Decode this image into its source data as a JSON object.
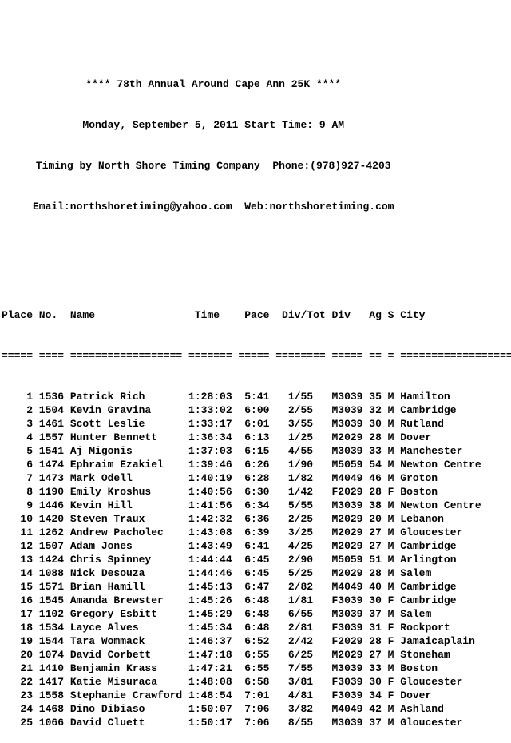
{
  "page": {
    "background_color": "#ffffff",
    "text_color": "#000000"
  },
  "header": {
    "title": "**** 78th Annual Around Cape Ann 25K ****",
    "date_line": "Monday, September 5, 2011 Start Time: 9 AM",
    "timing_line": "Timing by North Shore Timing Company  Phone:(978)927-4203",
    "contact_line": "Email:northshoretiming@yahoo.com  Web:northshoretiming.com"
  },
  "table": {
    "columns": [
      "Place",
      "No.",
      "Name",
      "Time",
      "Pace",
      "Div/Tot",
      "Div",
      "Ag",
      "S",
      "City"
    ],
    "rows": [
      {
        "place": "1",
        "no": "1536",
        "name": "Patrick Rich",
        "time": "1:28:03",
        "pace": "5:41",
        "div_tot": "1/55",
        "div": "M3039",
        "ag": "35",
        "s": "M",
        "city": "Hamilton"
      },
      {
        "place": "2",
        "no": "1504",
        "name": "Kevin Gravina",
        "time": "1:33:02",
        "pace": "6:00",
        "div_tot": "2/55",
        "div": "M3039",
        "ag": "32",
        "s": "M",
        "city": "Cambridge"
      },
      {
        "place": "3",
        "no": "1461",
        "name": "Scott Leslie",
        "time": "1:33:17",
        "pace": "6:01",
        "div_tot": "3/55",
        "div": "M3039",
        "ag": "30",
        "s": "M",
        "city": "Rutland"
      },
      {
        "place": "4",
        "no": "1557",
        "name": "Hunter Bennett",
        "time": "1:36:34",
        "pace": "6:13",
        "div_tot": "1/25",
        "div": "M2029",
        "ag": "28",
        "s": "M",
        "city": "Dover"
      },
      {
        "place": "5",
        "no": "1541",
        "name": "Aj Migonis",
        "time": "1:37:03",
        "pace": "6:15",
        "div_tot": "4/55",
        "div": "M3039",
        "ag": "33",
        "s": "M",
        "city": "Manchester"
      },
      {
        "place": "6",
        "no": "1474",
        "name": "Ephraim Ezakiel",
        "time": "1:39:46",
        "pace": "6:26",
        "div_tot": "1/90",
        "div": "M5059",
        "ag": "54",
        "s": "M",
        "city": "Newton Centre"
      },
      {
        "place": "7",
        "no": "1473",
        "name": "Mark Odell",
        "time": "1:40:19",
        "pace": "6:28",
        "div_tot": "1/82",
        "div": "M4049",
        "ag": "46",
        "s": "M",
        "city": "Groton"
      },
      {
        "place": "8",
        "no": "1190",
        "name": "Emily Kroshus",
        "time": "1:40:56",
        "pace": "6:30",
        "div_tot": "1/42",
        "div": "F2029",
        "ag": "28",
        "s": "F",
        "city": "Boston"
      },
      {
        "place": "9",
        "no": "1446",
        "name": "Kevin Hill",
        "time": "1:41:56",
        "pace": "6:34",
        "div_tot": "5/55",
        "div": "M3039",
        "ag": "38",
        "s": "M",
        "city": "Newton Centre"
      },
      {
        "place": "10",
        "no": "1420",
        "name": "Steven Traux",
        "time": "1:42:32",
        "pace": "6:36",
        "div_tot": "2/25",
        "div": "M2029",
        "ag": "20",
        "s": "M",
        "city": "Lebanon"
      },
      {
        "place": "11",
        "no": "1262",
        "name": "Andrew Pacholec",
        "time": "1:43:08",
        "pace": "6:39",
        "div_tot": "3/25",
        "div": "M2029",
        "ag": "27",
        "s": "M",
        "city": "Gloucester"
      },
      {
        "place": "12",
        "no": "1507",
        "name": "Adam Jones",
        "time": "1:43:49",
        "pace": "6:41",
        "div_tot": "4/25",
        "div": "M2029",
        "ag": "27",
        "s": "M",
        "city": "Cambridge"
      },
      {
        "place": "13",
        "no": "1424",
        "name": "Chris Spinney",
        "time": "1:44:44",
        "pace": "6:45",
        "div_tot": "2/90",
        "div": "M5059",
        "ag": "51",
        "s": "M",
        "city": "Arlington"
      },
      {
        "place": "14",
        "no": "1088",
        "name": "Nick Desouza",
        "time": "1:44:46",
        "pace": "6:45",
        "div_tot": "5/25",
        "div": "M2029",
        "ag": "28",
        "s": "M",
        "city": "Salem"
      },
      {
        "place": "15",
        "no": "1571",
        "name": "Brian Hamill",
        "time": "1:45:13",
        "pace": "6:47",
        "div_tot": "2/82",
        "div": "M4049",
        "ag": "40",
        "s": "M",
        "city": "Cambridge"
      },
      {
        "place": "16",
        "no": "1545",
        "name": "Amanda Brewster",
        "time": "1:45:26",
        "pace": "6:48",
        "div_tot": "1/81",
        "div": "F3039",
        "ag": "30",
        "s": "F",
        "city": "Cambridge"
      },
      {
        "place": "17",
        "no": "1102",
        "name": "Gregory Esbitt",
        "time": "1:45:29",
        "pace": "6:48",
        "div_tot": "6/55",
        "div": "M3039",
        "ag": "37",
        "s": "M",
        "city": "Salem"
      },
      {
        "place": "18",
        "no": "1534",
        "name": "Layce Alves",
        "time": "1:45:34",
        "pace": "6:48",
        "div_tot": "2/81",
        "div": "F3039",
        "ag": "31",
        "s": "F",
        "city": "Rockport"
      },
      {
        "place": "19",
        "no": "1544",
        "name": "Tara Wommack",
        "time": "1:46:37",
        "pace": "6:52",
        "div_tot": "2/42",
        "div": "F2029",
        "ag": "28",
        "s": "F",
        "city": "Jamaicaplain"
      },
      {
        "place": "20",
        "no": "1074",
        "name": "David Corbett",
        "time": "1:47:18",
        "pace": "6:55",
        "div_tot": "6/25",
        "div": "M2029",
        "ag": "27",
        "s": "M",
        "city": "Stoneham"
      },
      {
        "place": "21",
        "no": "1410",
        "name": "Benjamin Krass",
        "time": "1:47:21",
        "pace": "6:55",
        "div_tot": "7/55",
        "div": "M3039",
        "ag": "33",
        "s": "M",
        "city": "Boston"
      },
      {
        "place": "22",
        "no": "1417",
        "name": "Katie Misuraca",
        "time": "1:48:08",
        "pace": "6:58",
        "div_tot": "3/81",
        "div": "F3039",
        "ag": "30",
        "s": "F",
        "city": "Gloucester"
      },
      {
        "place": "23",
        "no": "1558",
        "name": "Stephanie Crawford",
        "time": "1:48:54",
        "pace": "7:01",
        "div_tot": "4/81",
        "div": "F3039",
        "ag": "34",
        "s": "F",
        "city": "Dover"
      },
      {
        "place": "24",
        "no": "1468",
        "name": "Dino Dibiaso",
        "time": "1:50:07",
        "pace": "7:06",
        "div_tot": "3/82",
        "div": "M4049",
        "ag": "42",
        "s": "M",
        "city": "Ashland"
      },
      {
        "place": "25",
        "no": "1066",
        "name": "David Cluett",
        "time": "1:50:17",
        "pace": "7:06",
        "div_tot": "8/55",
        "div": "M3039",
        "ag": "37",
        "s": "M",
        "city": "Gloucester"
      }
    ]
  }
}
